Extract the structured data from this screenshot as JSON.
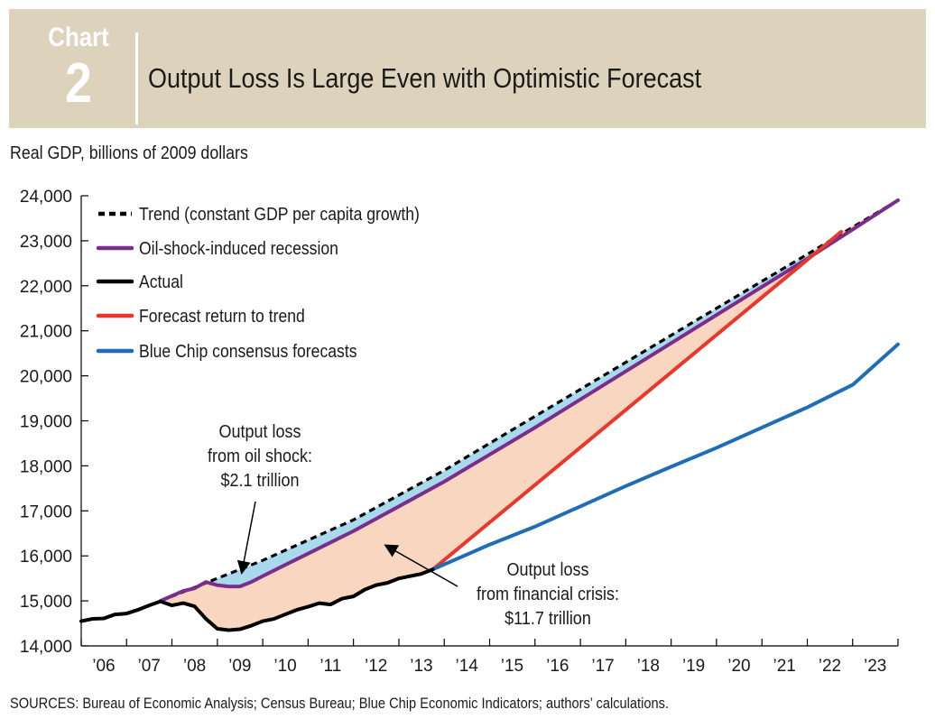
{
  "header": {
    "chart_word": "Chart",
    "chart_number": "2",
    "title": "Output Loss Is Large Even with Optimistic Forecast"
  },
  "units_label": "Real GDP, billions of 2009 dollars",
  "sources": "SOURCES: Bureau of Economic Analysis; Census Bureau; Blue Chip Economic Indicators; authors’ calculations.",
  "colors": {
    "banner": "#ddd3bd",
    "trend": "#000000",
    "oil_shock": "#7b2d8e",
    "actual": "#000000",
    "forecast_return": "#e8382c",
    "blue_chip": "#1f6db5",
    "oil_loss_fill": "#a9d9ec",
    "crisis_loss_fill": "#f9d6bf"
  },
  "chart_data": {
    "type": "line",
    "ylabel": "Real GDP, billions of 2009 dollars",
    "ylim": [
      14000,
      24000
    ],
    "yticks": [
      14000,
      15000,
      16000,
      17000,
      18000,
      19000,
      20000,
      21000,
      22000,
      23000,
      24000
    ],
    "yticklabels": [
      "14,000",
      "15,000",
      "16,000",
      "17,000",
      "18,000",
      "19,000",
      "20,000",
      "21,000",
      "22,000",
      "23,000",
      "24,000"
    ],
    "xlim": [
      "2006-01-01",
      "2024-01-01"
    ],
    "xticklabels": [
      "’06",
      "’07",
      "’08",
      "’09",
      "’10",
      "’11",
      "’12",
      "’13",
      "’14",
      "’15",
      "’16",
      "’17",
      "’18",
      "’19",
      "’20",
      "’21",
      "’22",
      "’23"
    ],
    "legend_position": "top-left",
    "series": [
      {
        "name": "Trend (constant GDP per capita growth)",
        "style": "dashed",
        "x": [
          "2007-10-01",
          "2010-01-01",
          "2012-01-01",
          "2014-01-01",
          "2016-01-01",
          "2018-01-01",
          "2020-01-01",
          "2022-01-01",
          "2024-01-01"
        ],
        "values": [
          15000,
          15900,
          16800,
          17900,
          19100,
          20300,
          21500,
          22700,
          23900
        ]
      },
      {
        "name": "Oil-shock-induced recession",
        "x": [
          "2007-10-01",
          "2008-04-01",
          "2008-07-01",
          "2008-10-01",
          "2009-01-01",
          "2009-04-01",
          "2009-07-01",
          "2009-10-01",
          "2010-01-01",
          "2010-07-01",
          "2011-01-01",
          "2012-01-01",
          "2013-01-01",
          "2014-01-01",
          "2016-01-01",
          "2018-01-01",
          "2020-01-01",
          "2022-01-01",
          "2024-01-01"
        ],
        "values": [
          15000,
          15220,
          15280,
          15420,
          15350,
          15320,
          15320,
          15420,
          15550,
          15800,
          16050,
          16550,
          17100,
          17650,
          18850,
          20100,
          21350,
          22600,
          23900
        ]
      },
      {
        "name": "Actual",
        "x": [
          "2006-01-01",
          "2006-04-01",
          "2006-07-01",
          "2006-10-01",
          "2007-01-01",
          "2007-04-01",
          "2007-07-01",
          "2007-10-01",
          "2008-01-01",
          "2008-04-01",
          "2008-07-01",
          "2008-10-01",
          "2009-01-01",
          "2009-04-01",
          "2009-07-01",
          "2009-10-01",
          "2010-01-01",
          "2010-04-01",
          "2010-07-01",
          "2010-10-01",
          "2011-01-01",
          "2011-04-01",
          "2011-07-01",
          "2011-10-01",
          "2012-01-01",
          "2012-04-01",
          "2012-07-01",
          "2012-10-01",
          "2013-01-01",
          "2013-04-01",
          "2013-07-01",
          "2013-10-01"
        ],
        "values": [
          14550,
          14600,
          14610,
          14700,
          14720,
          14800,
          14900,
          14990,
          14900,
          14950,
          14880,
          14600,
          14380,
          14350,
          14370,
          14450,
          14550,
          14600,
          14700,
          14800,
          14870,
          14950,
          14920,
          15050,
          15100,
          15250,
          15350,
          15400,
          15500,
          15550,
          15600,
          15700
        ]
      },
      {
        "name": "Forecast return to trend",
        "x": [
          "2013-10-01",
          "2022-10-01"
        ],
        "values": [
          15700,
          23200
        ]
      },
      {
        "name": "Blue Chip consensus forecasts",
        "x": [
          "2013-10-01",
          "2015-01-01",
          "2016-01-01",
          "2017-01-01",
          "2018-01-01",
          "2019-01-01",
          "2020-01-01",
          "2021-01-01",
          "2022-01-01",
          "2023-01-01",
          "2024-01-01"
        ],
        "values": [
          15700,
          16250,
          16650,
          17100,
          17550,
          17980,
          18400,
          18850,
          19300,
          19800,
          20700
        ]
      }
    ],
    "annotations": [
      {
        "name": "oil-shock-loss",
        "lines": [
          "Output loss",
          "from oil shock:",
          "$2.1 trillion"
        ]
      },
      {
        "name": "financial-crisis-loss",
        "lines": [
          "Output loss",
          "from financial crisis:",
          "$11.7 trillion"
        ]
      }
    ]
  }
}
